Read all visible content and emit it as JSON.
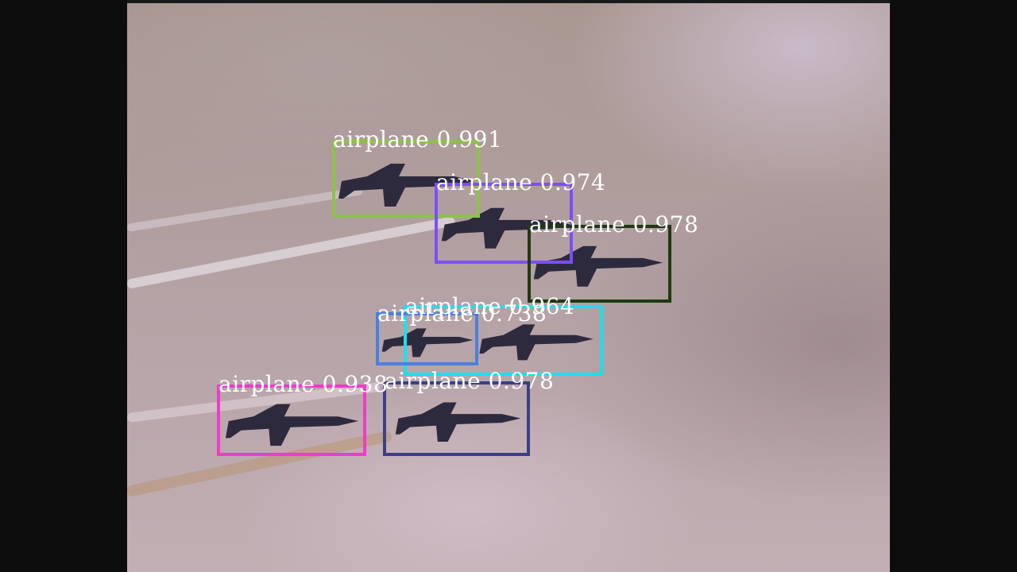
{
  "detections": [
    {
      "label": "airplane",
      "score": "0.991",
      "color": "#8bc34a"
    },
    {
      "label": "airplane",
      "score": "0.974",
      "color": "#7c4dff"
    },
    {
      "label": "airplane",
      "score": "0.978",
      "color": "#1f3a0f"
    },
    {
      "label": "airplane",
      "score": "0.964",
      "color": "#19e0f0"
    },
    {
      "label": "airplane",
      "score": "0.738",
      "color": "#4a7fe0"
    },
    {
      "label": "airplane",
      "score": "0.938",
      "color": "#f03cc8"
    },
    {
      "label": "airplane",
      "score": "0.978",
      "color": "#3a3f86"
    }
  ]
}
